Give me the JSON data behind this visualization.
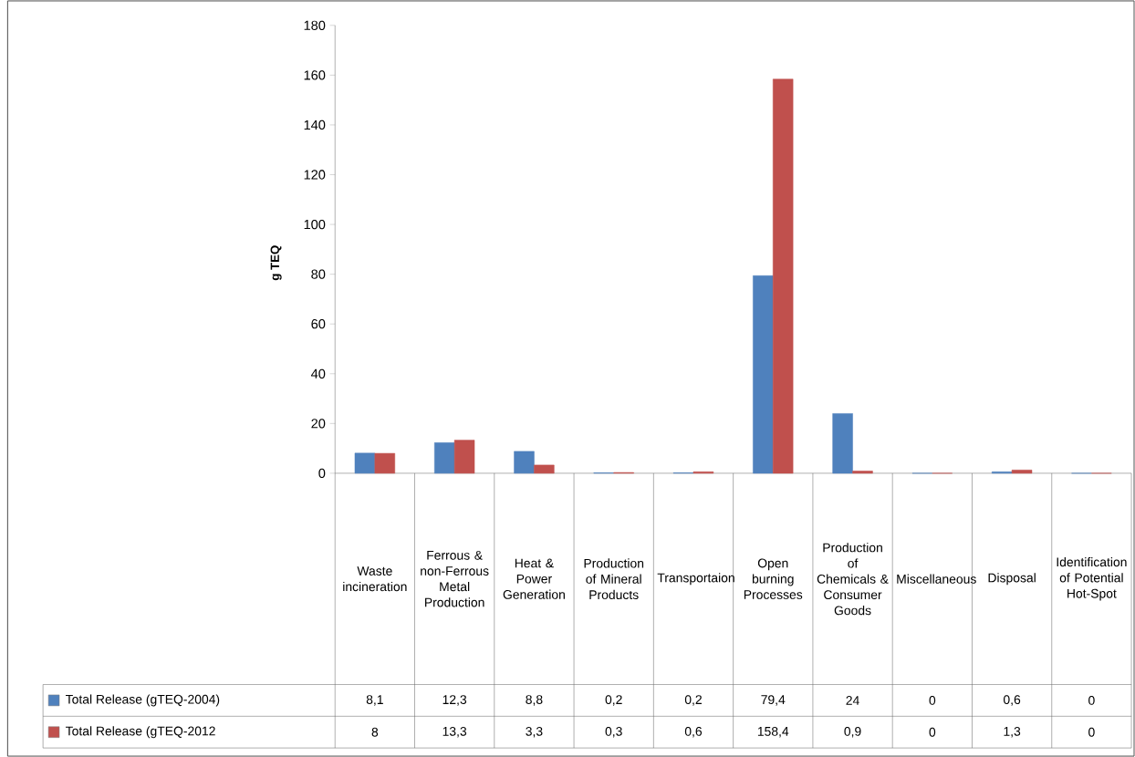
{
  "chart_data": {
    "type": "bar",
    "ylabel": "g TEQ",
    "categories": [
      "Waste incineration",
      "Ferrous & non-Ferrous Metal Production",
      "Heat & Power Generation",
      "Production of Mineral Products",
      "Transportaion",
      "Open burning Processes",
      "Production of Chemicals & Consumer Goods",
      "Miscellaneous",
      "Disposal",
      "Identification of Potential Hot-Spot"
    ],
    "series": [
      {
        "name": "Total Release (gTEQ-2004)",
        "color": "#4f81bd",
        "values": [
          8.1,
          12.3,
          8.8,
          0.2,
          0.2,
          79.4,
          24,
          0,
          0.6,
          0
        ],
        "value_labels": [
          "8,1",
          "12,3",
          "8,8",
          "0,2",
          "0,2",
          "79,4",
          "24",
          "0",
          "0,6",
          "0"
        ]
      },
      {
        "name": "Total Release (gTEQ-2012",
        "color": "#c0504d",
        "values": [
          8,
          13.3,
          3.3,
          0.3,
          0.6,
          158.4,
          0.9,
          0,
          1.3,
          0
        ],
        "value_labels": [
          "8",
          "13,3",
          "3,3",
          "0,3",
          "0,6",
          "158,4",
          "0,9",
          "0",
          "1,3",
          "0"
        ]
      }
    ],
    "ylim": [
      0,
      180
    ],
    "yticks": [
      0,
      20,
      40,
      60,
      80,
      100,
      120,
      140,
      160,
      180
    ],
    "grid": false,
    "legend": "bottom"
  }
}
